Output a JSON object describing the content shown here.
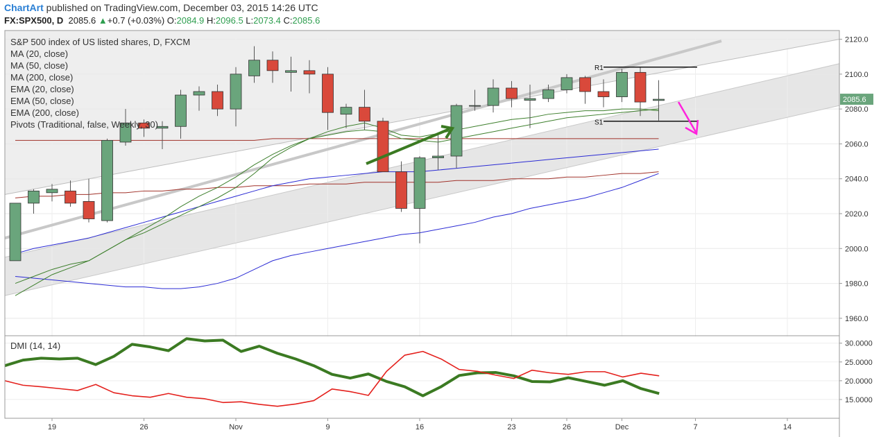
{
  "header": {
    "brand": "ChartArt",
    "published": "published on TradingView.com, December 03, 2015 14:26 UTC",
    "symbol": "FX:SPX500, D",
    "last": "2085.6",
    "arrow": "▲",
    "change": "+0.7 (+0.03%)",
    "o_label": "O:",
    "o_value": "2084.9",
    "h_label": "H:",
    "h_value": "2096.5",
    "l_label": "L:",
    "l_value": "2073.4",
    "c_label": "C:",
    "c_value": "2085.6"
  },
  "legend": {
    "title": "S&P 500 index of US listed shares, D, FXCM",
    "items": [
      "MA (20, close)",
      "MA (50, close)",
      "MA (200, close)",
      "EMA (20, close)",
      "EMA (50, close)",
      "EMA (200, close)",
      "Pivots (Traditional, false, Weekly, 30)"
    ]
  },
  "colors": {
    "up": "#6aa57c",
    "down": "#d9493b",
    "ma20": "#3d7f2c",
    "ma50": "#2a2ad4",
    "ma200": "#a03028",
    "dmi_plus": "#3b7a22",
    "dmi_minus": "#e4201c",
    "magenta": "#ff22dd",
    "last_price_bg": "#6aa57c"
  },
  "chart_data": [
    {
      "type": "candlestick",
      "ylim": [
        1950,
        2125
      ],
      "yticks": [
        1960,
        1980,
        2000,
        2020,
        2040,
        2060,
        2080,
        2100,
        2120
      ],
      "ytick_labels": [
        "1960.0",
        "1980.0",
        "2000.0",
        "2020.0",
        "2040.0",
        "2060.0",
        "2080.0",
        "2100.0",
        "2120.0"
      ],
      "xtick_labels": [
        "19",
        "26",
        "Nov",
        "9",
        "16",
        "23",
        "26",
        "Dec",
        "7",
        "14"
      ],
      "last_price": "2085.6",
      "pivots": {
        "R1": 2104,
        "S1": 2073,
        "R1_label": "R1",
        "S1_label": "S1"
      },
      "candles": [
        {
          "o": 1993,
          "h": 2026,
          "l": 1993,
          "c": 2026
        },
        {
          "o": 2026,
          "h": 2034,
          "l": 2020,
          "c": 2033
        },
        {
          "o": 2032,
          "h": 2037,
          "l": 2027,
          "c": 2034
        },
        {
          "o": 2033,
          "h": 2039,
          "l": 2024,
          "c": 2026
        },
        {
          "o": 2027,
          "h": 2040,
          "l": 2015,
          "c": 2017
        },
        {
          "o": 2016,
          "h": 2063,
          "l": 2015,
          "c": 2062
        },
        {
          "o": 2061,
          "h": 2080,
          "l": 2059,
          "c": 2072
        },
        {
          "o": 2072,
          "h": 2074,
          "l": 2064,
          "c": 2069
        },
        {
          "o": 2069,
          "h": 2073,
          "l": 2057,
          "c": 2070
        },
        {
          "o": 2070,
          "h": 2091,
          "l": 2063,
          "c": 2088
        },
        {
          "o": 2088,
          "h": 2093,
          "l": 2079,
          "c": 2090
        },
        {
          "o": 2090,
          "h": 2094,
          "l": 2076,
          "c": 2080
        },
        {
          "o": 2080,
          "h": 2104,
          "l": 2070,
          "c": 2100
        },
        {
          "o": 2099,
          "h": 2116,
          "l": 2095,
          "c": 2108
        },
        {
          "o": 2108,
          "h": 2113,
          "l": 2095,
          "c": 2102
        },
        {
          "o": 2101,
          "h": 2110,
          "l": 2090,
          "c": 2102
        },
        {
          "o": 2102,
          "h": 2108,
          "l": 2089,
          "c": 2100
        },
        {
          "o": 2100,
          "h": 2104,
          "l": 2068,
          "c": 2078
        },
        {
          "o": 2077,
          "h": 2083,
          "l": 2069,
          "c": 2081
        },
        {
          "o": 2081,
          "h": 2091,
          "l": 2068,
          "c": 2073
        },
        {
          "o": 2073,
          "h": 2075,
          "l": 2044,
          "c": 2044
        },
        {
          "o": 2044,
          "h": 2050,
          "l": 2021,
          "c": 2023
        },
        {
          "o": 2023,
          "h": 2053,
          "l": 2003,
          "c": 2052
        },
        {
          "o": 2052,
          "h": 2066,
          "l": 2045,
          "c": 2053
        },
        {
          "o": 2053,
          "h": 2083,
          "l": 2046,
          "c": 2082
        },
        {
          "o": 2082,
          "h": 2091,
          "l": 2079,
          "c": 2082
        },
        {
          "o": 2082,
          "h": 2097,
          "l": 2078,
          "c": 2092
        },
        {
          "o": 2092,
          "h": 2096,
          "l": 2081,
          "c": 2086
        },
        {
          "o": 2085,
          "h": 2094,
          "l": 2069,
          "c": 2086
        },
        {
          "o": 2086,
          "h": 2094,
          "l": 2084,
          "c": 2091
        },
        {
          "o": 2091,
          "h": 2100,
          "l": 2089,
          "c": 2098
        },
        {
          "o": 2098,
          "h": 2099,
          "l": 2083,
          "c": 2090
        },
        {
          "o": 2090,
          "h": 2097,
          "l": 2081,
          "c": 2087
        },
        {
          "o": 2087,
          "h": 2103,
          "l": 2084,
          "c": 2101
        },
        {
          "o": 2101,
          "h": 2104,
          "l": 2076,
          "c": 2084
        },
        {
          "o": 2084.9,
          "h": 2096.5,
          "l": 2073.4,
          "c": 2085.6
        }
      ],
      "ma20": [
        1973,
        1979,
        1985,
        1989,
        1993,
        1999,
        2005,
        2009,
        2014,
        2019,
        2024,
        2029,
        2035,
        2043,
        2052,
        2058,
        2063,
        2067,
        2070,
        2072,
        2069,
        2065,
        2064,
        2066,
        2068,
        2070,
        2072,
        2074,
        2075,
        2077,
        2078,
        2079,
        2079,
        2080,
        2080,
        2079
      ],
      "ma50": [
        1984,
        1983,
        1982,
        1981,
        1980,
        1979,
        1978,
        1978,
        1977,
        1977,
        1978,
        1980,
        1983,
        1988,
        1993,
        1996,
        1998,
        2000,
        2002,
        2004,
        2006,
        2008,
        2009,
        2011,
        2013,
        2015,
        2018,
        2020,
        2023,
        2025,
        2027,
        2029,
        2032,
        2035,
        2039,
        2043
      ],
      "ma200": [
        2062,
        2062,
        2062,
        2062,
        2062,
        2062,
        2062,
        2062,
        2062,
        2062,
        2062,
        2062,
        2062,
        2062,
        2063,
        2063,
        2063,
        2063,
        2063,
        2063,
        2063,
        2063,
        2063,
        2063,
        2063,
        2063,
        2063,
        2063,
        2063,
        2063,
        2063,
        2063,
        2063,
        2063,
        2063,
        2063
      ],
      "ema20": [
        1980,
        1984,
        1988,
        1991,
        1993,
        1999,
        2005,
        2011,
        2017,
        2024,
        2030,
        2035,
        2041,
        2048,
        2054,
        2059,
        2063,
        2065,
        2067,
        2068,
        2067,
        2063,
        2062,
        2061,
        2063,
        2065,
        2067,
        2069,
        2071,
        2073,
        2075,
        2076,
        2077,
        2078,
        2079,
        2080
      ],
      "ema50": [
        1997,
        2000,
        2002,
        2004,
        2006,
        2009,
        2012,
        2015,
        2018,
        2021,
        2024,
        2027,
        2030,
        2033,
        2036,
        2038,
        2040,
        2041,
        2042,
        2043,
        2044,
        2044,
        2044,
        2045,
        2046,
        2047,
        2048,
        2049,
        2050,
        2051,
        2052,
        2053,
        2054,
        2055,
        2056,
        2057
      ],
      "ema200": [
        2029,
        2030,
        2030,
        2031,
        2031,
        2032,
        2032,
        2033,
        2033,
        2034,
        2034,
        2035,
        2035,
        2036,
        2036,
        2036,
        2037,
        2037,
        2037,
        2038,
        2038,
        2038,
        2038,
        2038,
        2039,
        2039,
        2039,
        2040,
        2040,
        2040,
        2041,
        2041,
        2042,
        2043,
        2043,
        2044
      ]
    },
    {
      "type": "line",
      "title": "DMI (14, 14)",
      "ylim": [
        10,
        31.8
      ],
      "yticks": [
        15,
        20,
        25,
        30
      ],
      "ytick_labels": [
        "15.0000",
        "20.0000",
        "25.0000",
        "30.0000"
      ],
      "series": [
        {
          "name": "",
          "values": [
            24,
            25.5,
            26,
            25.8,
            26,
            24.3,
            26.5,
            29.7,
            29,
            28,
            31.2,
            30.6,
            30.8,
            27.8,
            29.2,
            27.3,
            25.8,
            24,
            21.7,
            20.7,
            21.8,
            19.8,
            18.4,
            16,
            18.4,
            21.4,
            22.1,
            22.2,
            21.3,
            19.8,
            19.7,
            20.8,
            19.8,
            18.8,
            20,
            17.9,
            16.6
          ]
        },
        {
          "name": "",
          "values": [
            20,
            18.8,
            18.4,
            17.9,
            17.4,
            19,
            16.8,
            16,
            15.6,
            16.6,
            15.6,
            15.2,
            14.2,
            14.4,
            13.7,
            13.2,
            13.8,
            14.7,
            17.8,
            17.1,
            16.1,
            22.5,
            26.8,
            27.8,
            25.8,
            23,
            22.5,
            21.5,
            20.6,
            22.8,
            22.1,
            21.7,
            22.4,
            22.4,
            21,
            22,
            21.3
          ]
        }
      ]
    }
  ]
}
